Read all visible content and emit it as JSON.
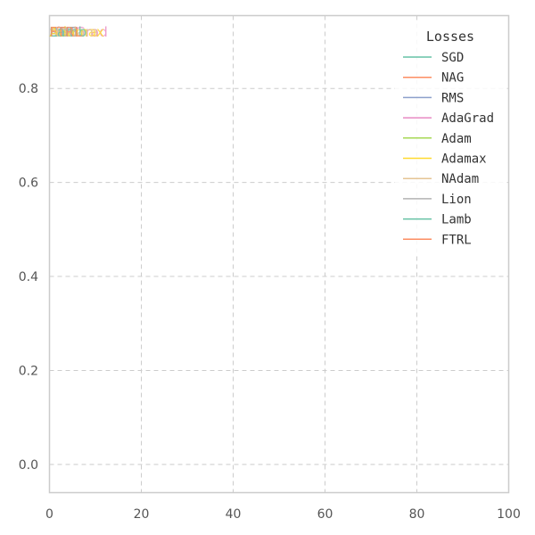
{
  "chart_data": {
    "type": "line",
    "title": "",
    "xlabel": "",
    "ylabel": "",
    "xlim": [
      0,
      100
    ],
    "ylim": [
      -0.06,
      0.955
    ],
    "xticks": [
      0,
      20,
      40,
      60,
      80,
      100
    ],
    "yticks": [
      0.0,
      0.2,
      0.4,
      0.6,
      0.8
    ],
    "ytick_labels": [
      "0.0",
      "0.2",
      "0.4",
      "0.6",
      "0.8"
    ],
    "xtick_labels": [
      "0",
      "20",
      "40",
      "60",
      "80",
      "100"
    ],
    "grid": true,
    "legend": {
      "title": "Losses",
      "position": "top-right"
    },
    "series": [
      {
        "name": "SGD",
        "color": "#66c2a5",
        "x": [
          0
        ],
        "y": [
          0.92
        ]
      },
      {
        "name": "NAG",
        "color": "#fc8d62",
        "x": [
          0
        ],
        "y": [
          0.92
        ]
      },
      {
        "name": "RMS",
        "color": "#8da0cb",
        "x": [
          0
        ],
        "y": [
          0.92
        ]
      },
      {
        "name": "AdaGrad",
        "color": "#e78ac3",
        "x": [
          0
        ],
        "y": [
          0.92
        ]
      },
      {
        "name": "Adam",
        "color": "#a6d854",
        "x": [
          0
        ],
        "y": [
          0.92
        ]
      },
      {
        "name": "Adamax",
        "color": "#ffd92f",
        "x": [
          0
        ],
        "y": [
          0.92
        ]
      },
      {
        "name": "NAdam",
        "color": "#e5c494",
        "x": [
          0
        ],
        "y": [
          0.92
        ]
      },
      {
        "name": "Lion",
        "color": "#b3b3b3",
        "x": [
          0
        ],
        "y": [
          0.92
        ]
      },
      {
        "name": "Lamb",
        "color": "#66c2a5",
        "x": [
          0
        ],
        "y": [
          0.92
        ]
      },
      {
        "name": "FTRL",
        "color": "#fc8d62",
        "x": [
          0
        ],
        "y": [
          0.92
        ]
      }
    ]
  }
}
